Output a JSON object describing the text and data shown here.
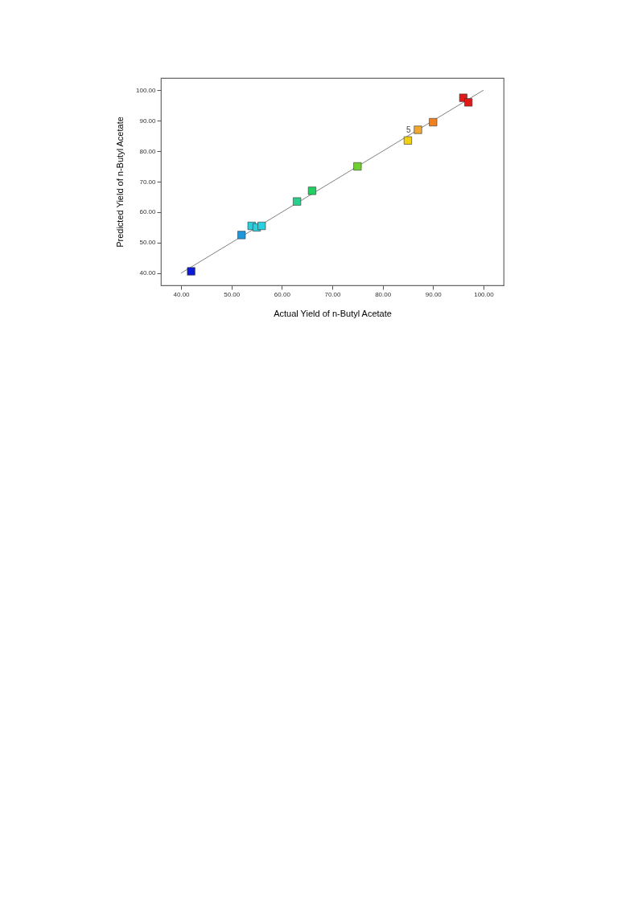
{
  "chart_data": {
    "type": "scatter",
    "xlabel": "Actual Yield of n-Butyl Acetate",
    "ylabel": "Predicted Yield of n-Butyl Acetate",
    "marker": "square",
    "grid": false,
    "xlim": [
      36,
      104
    ],
    "ylim": [
      36,
      104
    ],
    "xticks": [
      {
        "value": 40,
        "label": "40.00"
      },
      {
        "value": 50,
        "label": "50.00"
      },
      {
        "value": 60,
        "label": "60.00"
      },
      {
        "value": 70,
        "label": "70.00"
      },
      {
        "value": 80,
        "label": "80.00"
      },
      {
        "value": 90,
        "label": "90.00"
      },
      {
        "value": 100,
        "label": "100.00"
      }
    ],
    "yticks": [
      {
        "value": 40,
        "label": "40.00"
      },
      {
        "value": 50,
        "label": "50.00"
      },
      {
        "value": 60,
        "label": "60.00"
      },
      {
        "value": 70,
        "label": "70.00"
      },
      {
        "value": 80,
        "label": "80.00"
      },
      {
        "value": 90,
        "label": "90.00"
      },
      {
        "value": 100,
        "label": "100.00"
      }
    ],
    "series": [
      {
        "type": "line",
        "color": "#808080",
        "marker": "none",
        "x": [
          40,
          100
        ],
        "values": [
          40,
          100
        ]
      },
      {
        "x": [
          42,
          52,
          54,
          55,
          56,
          63,
          66,
          75,
          85,
          87,
          90,
          96,
          97
        ],
        "values": [
          40.6,
          52.5,
          55.5,
          55,
          55.5,
          63.5,
          67,
          75,
          83.5,
          87,
          89.5,
          97.5,
          96
        ],
        "colors": [
          "#0a1ad8",
          "#1e96dc",
          "#28d0e0",
          "#28d0e0",
          "#28d0e0",
          "#28d08c",
          "#20d060",
          "#70d030",
          "#f0d010",
          "#f0a830",
          "#f08020",
          "#e01818",
          "#e01818"
        ]
      }
    ],
    "annotations": [
      {
        "text": "5",
        "x": 87,
        "y": 87
      }
    ]
  }
}
